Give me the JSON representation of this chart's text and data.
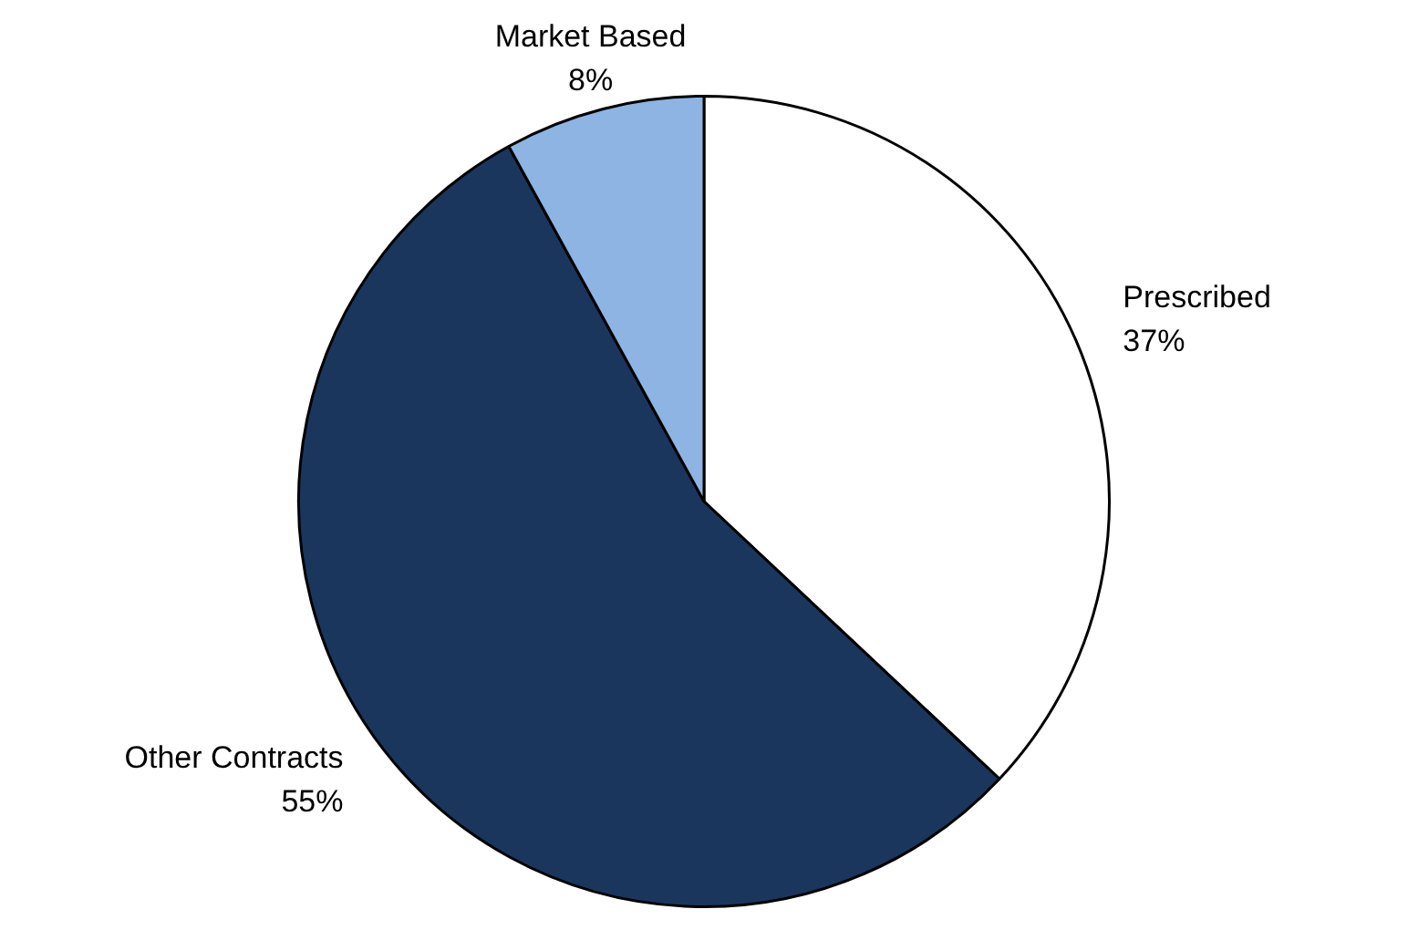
{
  "chart_data": {
    "type": "pie",
    "categories": [
      "Prescribed",
      "Other Contracts",
      "Market Based"
    ],
    "values": [
      37,
      55,
      8
    ],
    "colors": [
      "#ffffff",
      "#1b365d",
      "#8db4e2"
    ],
    "value_labels": [
      "37%",
      "55%",
      "8%"
    ],
    "legend": false
  }
}
